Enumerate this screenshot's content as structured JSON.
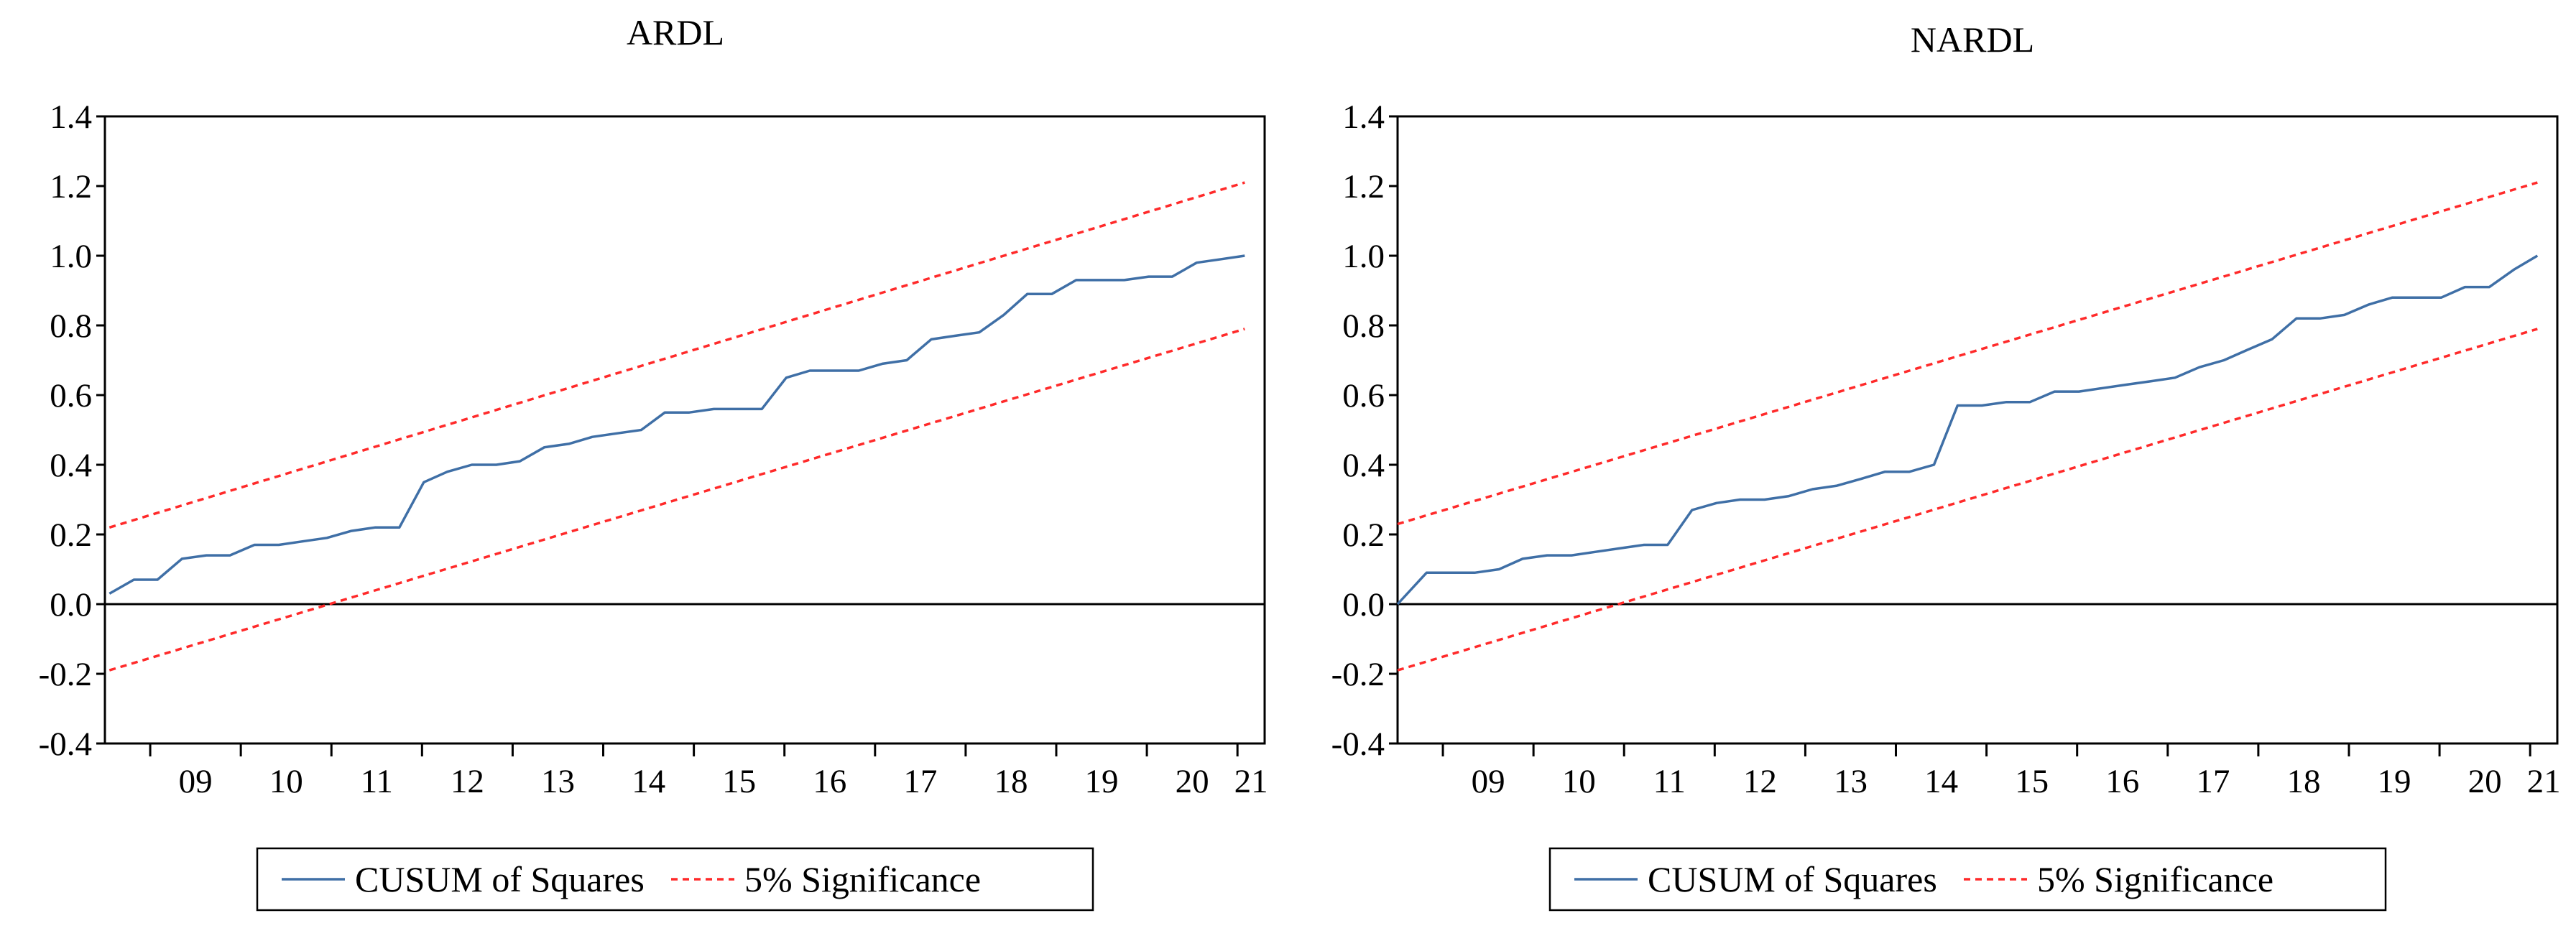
{
  "charts": [
    {
      "title": "ARDL",
      "legend": {
        "cusum_label": "CUSUM of Squares",
        "significance_label": "5% Significance"
      }
    },
    {
      "title": "NARDL",
      "legend": {
        "cusum_label": "CUSUM of Squares",
        "significance_label": "5% Significance"
      }
    }
  ],
  "colors": {
    "cusum_line": "#3f6fa6",
    "significance_line": "#ff2a2a",
    "axis": "#000000",
    "background": "#ffffff"
  },
  "chart_data": [
    {
      "type": "line",
      "title": "ARDL",
      "xlabel": "",
      "ylabel": "",
      "x_tick_labels": [
        "09",
        "10",
        "11",
        "12",
        "13",
        "14",
        "15",
        "16",
        "17",
        "18",
        "19",
        "20",
        "21"
      ],
      "y_tick_labels": [
        "1.4",
        "1.2",
        "1.0",
        "0.8",
        "0.6",
        "0.4",
        "0.2",
        "0.0",
        "-0.2",
        "-0.4"
      ],
      "ylim": [
        -0.4,
        1.4
      ],
      "xlim": [
        2008.5,
        2021.3
      ],
      "grid": false,
      "zero_line": true,
      "legend_position": "bottom",
      "series": [
        {
          "name": "CUSUM of Squares",
          "style": "solid",
          "x": [
            2008.55,
            2008.82,
            2009.08,
            2009.35,
            2009.62,
            2009.88,
            2010.15,
            2010.42,
            2010.68,
            2010.95,
            2011.22,
            2011.48,
            2011.75,
            2012.02,
            2012.28,
            2012.55,
            2012.82,
            2013.08,
            2013.35,
            2013.62,
            2013.88,
            2014.15,
            2014.42,
            2014.68,
            2014.95,
            2015.22,
            2015.48,
            2015.75,
            2016.02,
            2016.28,
            2016.55,
            2016.82,
            2017.08,
            2017.35,
            2017.62,
            2017.88,
            2018.15,
            2018.42,
            2018.68,
            2018.95,
            2019.22,
            2019.48,
            2019.75,
            2020.02,
            2020.28,
            2020.55,
            2020.82,
            2021.08
          ],
          "y": [
            0.03,
            0.07,
            0.07,
            0.13,
            0.14,
            0.14,
            0.17,
            0.17,
            0.18,
            0.19,
            0.21,
            0.22,
            0.22,
            0.35,
            0.38,
            0.4,
            0.4,
            0.41,
            0.45,
            0.46,
            0.48,
            0.49,
            0.5,
            0.55,
            0.55,
            0.56,
            0.56,
            0.56,
            0.65,
            0.67,
            0.67,
            0.67,
            0.69,
            0.7,
            0.76,
            0.77,
            0.78,
            0.83,
            0.89,
            0.89,
            0.93,
            0.93,
            0.93,
            0.94,
            0.94,
            0.98,
            0.99,
            1.0
          ]
        },
        {
          "name": "5% Significance (upper)",
          "legend_label": "5% Significance",
          "style": "dashed",
          "x": [
            2008.55,
            2021.08
          ],
          "y": [
            0.22,
            1.21
          ]
        },
        {
          "name": "5% Significance (lower)",
          "legend_label": "5% Significance",
          "style": "dashed",
          "x": [
            2008.55,
            2021.08
          ],
          "y": [
            -0.19,
            0.79
          ]
        }
      ]
    },
    {
      "type": "line",
      "title": "NARDL",
      "xlabel": "",
      "ylabel": "",
      "x_tick_labels": [
        "09",
        "10",
        "11",
        "12",
        "13",
        "14",
        "15",
        "16",
        "17",
        "18",
        "19",
        "20",
        "21"
      ],
      "y_tick_labels": [
        "1.4",
        "1.2",
        "1.0",
        "0.8",
        "0.6",
        "0.4",
        "0.2",
        "0.0",
        "-0.2",
        "-0.4"
      ],
      "ylim": [
        -0.4,
        1.4
      ],
      "xlim": [
        2008.5,
        2021.3
      ],
      "grid": false,
      "zero_line": true,
      "legend_position": "bottom",
      "series": [
        {
          "name": "CUSUM of Squares",
          "style": "solid",
          "x": [
            2008.5,
            2008.82,
            2009.08,
            2009.35,
            2009.62,
            2009.88,
            2010.15,
            2010.42,
            2010.68,
            2010.95,
            2011.22,
            2011.48,
            2011.75,
            2012.02,
            2012.28,
            2012.55,
            2012.82,
            2013.08,
            2013.35,
            2013.62,
            2013.88,
            2014.15,
            2014.42,
            2014.68,
            2014.95,
            2015.22,
            2015.48,
            2015.75,
            2016.02,
            2016.28,
            2016.55,
            2016.82,
            2017.08,
            2017.35,
            2017.62,
            2017.88,
            2018.15,
            2018.42,
            2018.68,
            2018.95,
            2019.22,
            2019.48,
            2019.75,
            2020.02,
            2020.28,
            2020.55,
            2020.82,
            2021.08
          ],
          "y": [
            0.0,
            0.09,
            0.09,
            0.09,
            0.1,
            0.13,
            0.14,
            0.14,
            0.15,
            0.16,
            0.17,
            0.17,
            0.27,
            0.29,
            0.3,
            0.3,
            0.31,
            0.33,
            0.34,
            0.36,
            0.38,
            0.38,
            0.4,
            0.57,
            0.57,
            0.58,
            0.58,
            0.61,
            0.61,
            0.62,
            0.63,
            0.64,
            0.65,
            0.68,
            0.7,
            0.73,
            0.76,
            0.82,
            0.82,
            0.83,
            0.86,
            0.88,
            0.88,
            0.88,
            0.91,
            0.91,
            0.96,
            1.0
          ]
        },
        {
          "name": "5% Significance (upper)",
          "legend_label": "5% Significance",
          "style": "dashed",
          "x": [
            2008.5,
            2021.08
          ],
          "y": [
            0.23,
            1.21
          ]
        },
        {
          "name": "5% Significance (lower)",
          "legend_label": "5% Significance",
          "style": "dashed",
          "x": [
            2008.5,
            2021.08
          ],
          "y": [
            -0.19,
            0.79
          ]
        }
      ]
    }
  ]
}
